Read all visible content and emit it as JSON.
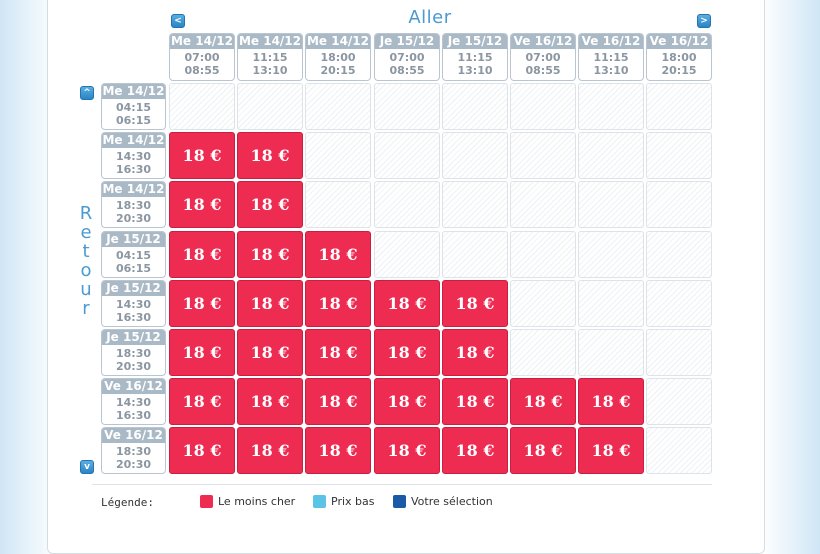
{
  "header": {
    "aller_title": "Aller",
    "prev_label": "<",
    "next_label": ">"
  },
  "sidebar": {
    "retour_letters": [
      "R",
      "e",
      "t",
      "o",
      "u",
      "r"
    ],
    "up_label": "^",
    "down_label": "v"
  },
  "columns": [
    {
      "date": "Me 14/12",
      "depart": "07:00",
      "arrivee": "08:55"
    },
    {
      "date": "Me 14/12",
      "depart": "11:15",
      "arrivee": "13:10"
    },
    {
      "date": "Me 14/12",
      "depart": "18:00",
      "arrivee": "20:15"
    },
    {
      "date": "Je 15/12",
      "depart": "07:00",
      "arrivee": "08:55"
    },
    {
      "date": "Je 15/12",
      "depart": "11:15",
      "arrivee": "13:10"
    },
    {
      "date": "Ve 16/12",
      "depart": "07:00",
      "arrivee": "08:55"
    },
    {
      "date": "Ve 16/12",
      "depart": "11:15",
      "arrivee": "13:10"
    },
    {
      "date": "Ve 16/12",
      "depart": "18:00",
      "arrivee": "20:15"
    }
  ],
  "rows": [
    {
      "date": "Me 14/12",
      "depart": "04:15",
      "arrivee": "06:15",
      "cells": [
        null,
        null,
        null,
        null,
        null,
        null,
        null,
        null
      ]
    },
    {
      "date": "Me 14/12",
      "depart": "14:30",
      "arrivee": "16:30",
      "cells": [
        "18 €",
        "18 €",
        null,
        null,
        null,
        null,
        null,
        null
      ]
    },
    {
      "date": "Me 14/12",
      "depart": "18:30",
      "arrivee": "20:30",
      "cells": [
        "18 €",
        "18 €",
        null,
        null,
        null,
        null,
        null,
        null
      ]
    },
    {
      "date": "Je 15/12",
      "depart": "04:15",
      "arrivee": "06:15",
      "cells": [
        "18 €",
        "18 €",
        "18 €",
        null,
        null,
        null,
        null,
        null
      ]
    },
    {
      "date": "Je 15/12",
      "depart": "14:30",
      "arrivee": "16:30",
      "cells": [
        "18 €",
        "18 €",
        "18 €",
        "18 €",
        "18 €",
        null,
        null,
        null
      ]
    },
    {
      "date": "Je 15/12",
      "depart": "18:30",
      "arrivee": "20:30",
      "cells": [
        "18 €",
        "18 €",
        "18 €",
        "18 €",
        "18 €",
        null,
        null,
        null
      ]
    },
    {
      "date": "Ve 16/12",
      "depart": "14:30",
      "arrivee": "16:30",
      "cells": [
        "18 €",
        "18 €",
        "18 €",
        "18 €",
        "18 €",
        "18 €",
        "18 €",
        null
      ]
    },
    {
      "date": "Ve 16/12",
      "depart": "18:30",
      "arrivee": "20:30",
      "cells": [
        "18 €",
        "18 €",
        "18 €",
        "18 €",
        "18 €",
        "18 €",
        "18 €",
        null
      ]
    }
  ],
  "legend": {
    "label": "Légende:",
    "items": [
      {
        "label": "Le moins cher",
        "color": "#ee2c52"
      },
      {
        "label": "Prix bas",
        "color": "#5bc3e6"
      },
      {
        "label": "Votre sélection",
        "color": "#1a5aa6"
      }
    ]
  },
  "colors": {
    "accent": "#4a9ad3",
    "cheapest": "#ee2c52",
    "header_bg": "#a9b9c6"
  }
}
